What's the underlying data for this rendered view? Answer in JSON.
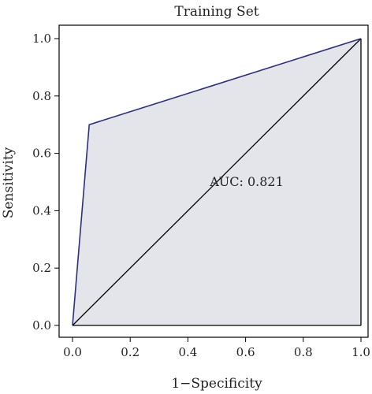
{
  "chart_data": {
    "type": "line",
    "title": "Training Set",
    "xlabel": "1−Specificity",
    "ylabel": "Sensitivity",
    "xlim": [
      0,
      1
    ],
    "ylim": [
      0,
      1
    ],
    "x_ticks": [
      "0.0",
      "0.2",
      "0.4",
      "0.6",
      "0.8",
      "1.0"
    ],
    "y_ticks": [
      "0.0",
      "0.2",
      "0.4",
      "0.6",
      "0.8",
      "1.0"
    ],
    "grid": false,
    "legend": "none",
    "series": [
      {
        "x": [
          0.0,
          0.058,
          1.0
        ],
        "y": [
          0.0,
          0.7,
          1.0
        ],
        "color": "#2f2f7a",
        "fill": "#e3e5ea"
      }
    ],
    "reference_line": {
      "x": [
        0,
        1
      ],
      "y": [
        0,
        1
      ],
      "color": "#000000"
    },
    "annotation": {
      "text": "AUC: 0.821",
      "x": 0.5,
      "y": 0.47
    }
  }
}
